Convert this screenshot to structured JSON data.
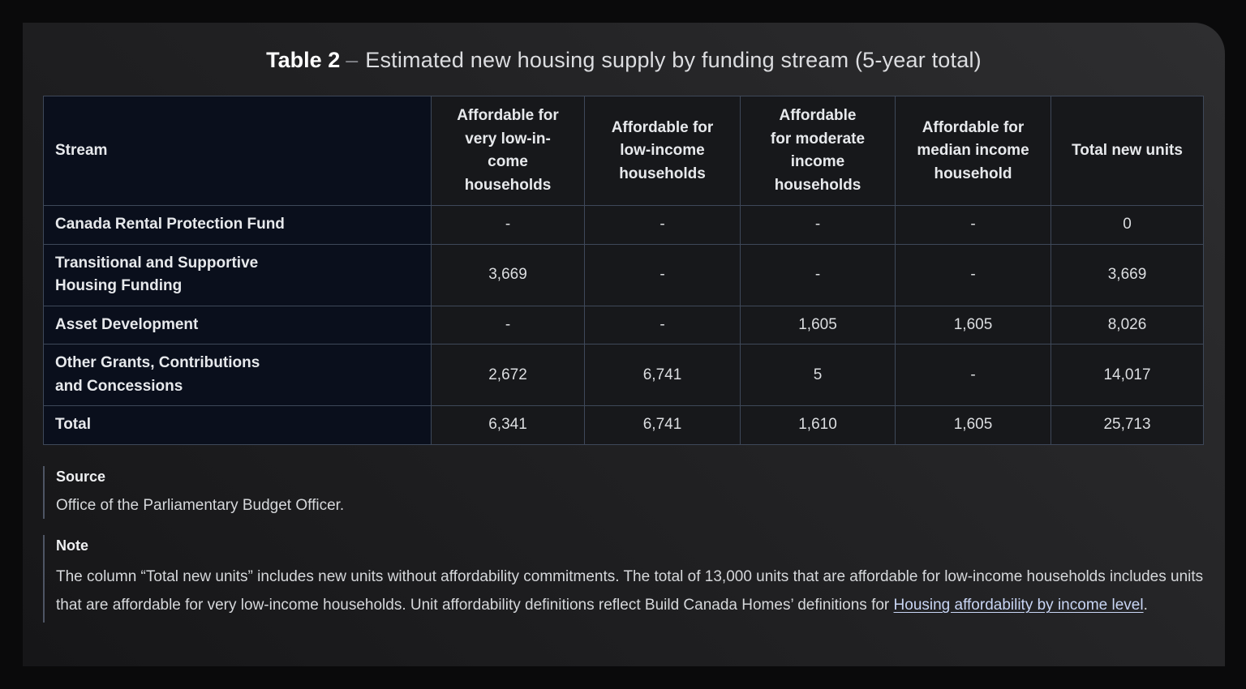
{
  "title": {
    "label": "Table 2",
    "separator": "–",
    "text": "Estimated new housing supply by funding stream (5-year total)"
  },
  "table": {
    "columns": [
      "Stream",
      "Affordable for\nvery low-in-\ncome\nhouseholds",
      "Affordable for\nlow-income\nhouseholds",
      "Affordable\nfor moderate\nincome\nhouseholds",
      "Affordable for\nmedian income\nhousehold",
      "Total new units"
    ],
    "rows": [
      {
        "label": "Canada Rental Protection Fund",
        "values": [
          "-",
          "-",
          "-",
          "-",
          "0"
        ]
      },
      {
        "label": "Transitional and Supportive\nHousing Funding",
        "values": [
          "3,669",
          "-",
          "-",
          "-",
          "3,669"
        ]
      },
      {
        "label": "Asset Development",
        "values": [
          "-",
          "-",
          "1,605",
          "1,605",
          "8,026"
        ]
      },
      {
        "label": "Other Grants, Contributions\nand Concessions",
        "values": [
          "2,672",
          "6,741",
          "5",
          "-",
          "14,017"
        ]
      },
      {
        "label": "Total",
        "values": [
          "6,341",
          "6,741",
          "1,610",
          "1,605",
          "25,713"
        ]
      }
    ]
  },
  "source": {
    "heading": "Source",
    "body": "Office of the Parliamentary Budget Officer."
  },
  "note": {
    "heading": "Note",
    "body_pre": "The column “Total new units” includes new units without affordability commitments. The total of 13,000 units that are affordable for low-income households includes units that are affordable for very low-income households. Unit affordability definitions reflect Build Canada Homes’ definitions for ",
    "link": "Housing affordability by income level",
    "body_post": "."
  },
  "colors": {
    "card_background": "#232325",
    "table_border": "#3e4859",
    "stream_column_background": "#0a0f1c",
    "value_cell_background": "#17181b",
    "link": "#c9d6f5"
  }
}
